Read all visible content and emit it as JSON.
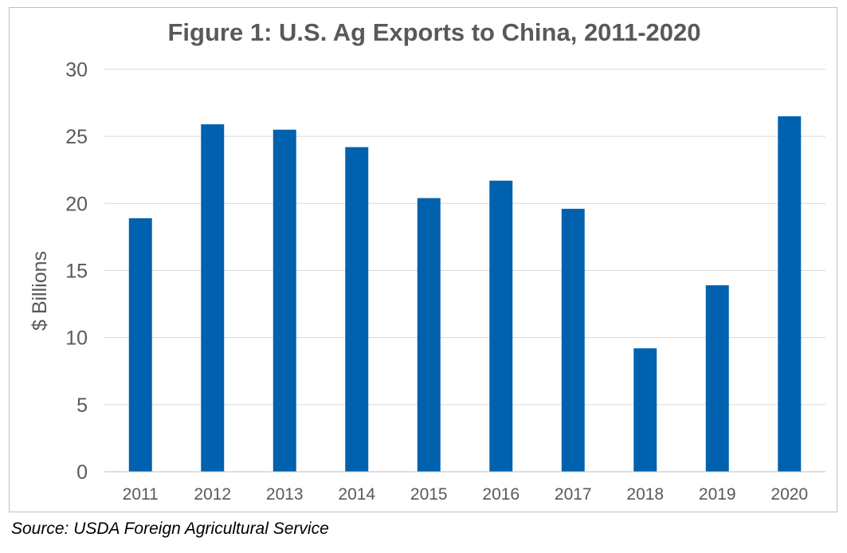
{
  "chart_data": {
    "type": "bar",
    "title": "Figure 1: U.S. Ag Exports to China, 2011-2020",
    "xlabel": "",
    "ylabel": "$ Billions",
    "categories": [
      "2011",
      "2012",
      "2013",
      "2014",
      "2015",
      "2016",
      "2017",
      "2018",
      "2019",
      "2020"
    ],
    "values": [
      18.9,
      25.9,
      25.5,
      24.2,
      20.4,
      21.7,
      19.6,
      9.2,
      13.9,
      26.5
    ],
    "ylim": [
      0,
      30
    ],
    "yticks": [
      0,
      5,
      10,
      15,
      20,
      25,
      30
    ],
    "grid": true,
    "legend": "none",
    "bar_color": "#0061AE"
  },
  "source": "Source: USDA Foreign Agricultural Service"
}
